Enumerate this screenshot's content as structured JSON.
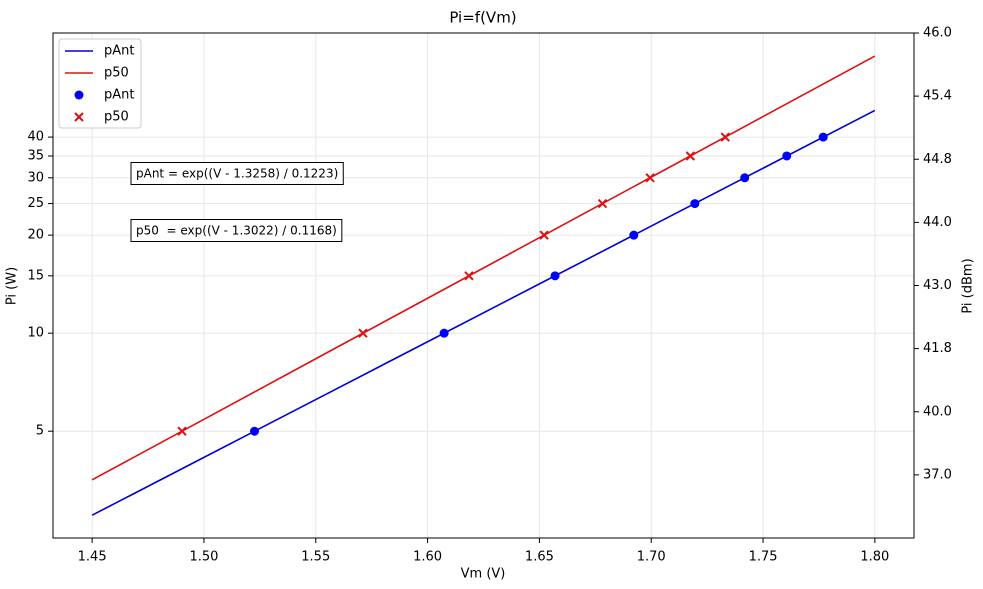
{
  "chart_data": {
    "type": "line",
    "title": "Pi=f(Vm)",
    "x_label": "Vm (V)",
    "y_label": "Pi (W)",
    "y2_label": "Pi (dBm)",
    "xlim": [
      1.4325,
      1.8175
    ],
    "xticks": [
      1.45,
      {
        "value": 1.5,
        "label": "1.50"
      },
      1.55,
      {
        "value": 1.6,
        "label": "1.60"
      },
      1.65,
      {
        "value": 1.7,
        "label": "1.70"
      },
      1.75,
      {
        "value": 1.8,
        "label": "1.80"
      }
    ],
    "ylim": [
      2.35,
      83.5
    ],
    "yscale": "log",
    "yticks": [
      5,
      10,
      15,
      20,
      25,
      30,
      35,
      40
    ],
    "y2lim": [
      0,
      8
    ],
    "y2ticks": [
      {
        "value": 1,
        "label": "37.0"
      },
      {
        "value": 2,
        "label": "40.0"
      },
      {
        "value": 3,
        "label": "41.8"
      },
      {
        "value": 4,
        "label": "43.0"
      },
      {
        "value": 5,
        "label": "44.0"
      },
      {
        "value": 6,
        "label": "44.8"
      },
      {
        "value": 7,
        "label": "45.4"
      },
      {
        "value": 8,
        "label": "46.0"
      }
    ],
    "grid": true,
    "legend": "upper left",
    "annotations": [
      "pAnt = exp((V - 1.3258) / 0.1223)",
      "p50  = exp((V - 1.3022) / 0.1168)"
    ],
    "series": [
      {
        "name": "pAnt",
        "type": "line",
        "color": "#0000dd",
        "x": [
          1.45,
          1.5,
          1.55,
          1.6,
          1.65,
          1.7,
          1.75,
          1.8
        ],
        "values": [
          2.761,
          4.156,
          6.254,
          9.412,
          14.17,
          21.32,
          32.09,
          48.3
        ]
      },
      {
        "name": "p50",
        "type": "line",
        "color": "#e01010",
        "x": [
          1.45,
          1.5,
          1.55,
          1.6,
          1.65,
          1.7,
          1.75,
          1.8
        ],
        "values": [
          3.545,
          5.438,
          8.345,
          12.8,
          19.64,
          30.14,
          46.24,
          70.96
        ]
      },
      {
        "name": "pAnt",
        "type": "scatter",
        "marker": "o",
        "color": "#0000ff",
        "x": [
          1.5226,
          1.6074,
          1.657,
          1.6922,
          1.7195,
          1.7418,
          1.7606,
          1.7769
        ],
        "values": [
          5,
          10,
          15,
          20,
          25,
          30,
          35,
          40
        ]
      },
      {
        "name": "p50",
        "type": "scatter",
        "marker": "x",
        "color": "#e01010",
        "x": [
          1.4902,
          1.5711,
          1.6185,
          1.6521,
          1.6782,
          1.6995,
          1.7175,
          1.7331
        ],
        "values": [
          5,
          10,
          15,
          20,
          25,
          30,
          35,
          40
        ]
      }
    ]
  }
}
